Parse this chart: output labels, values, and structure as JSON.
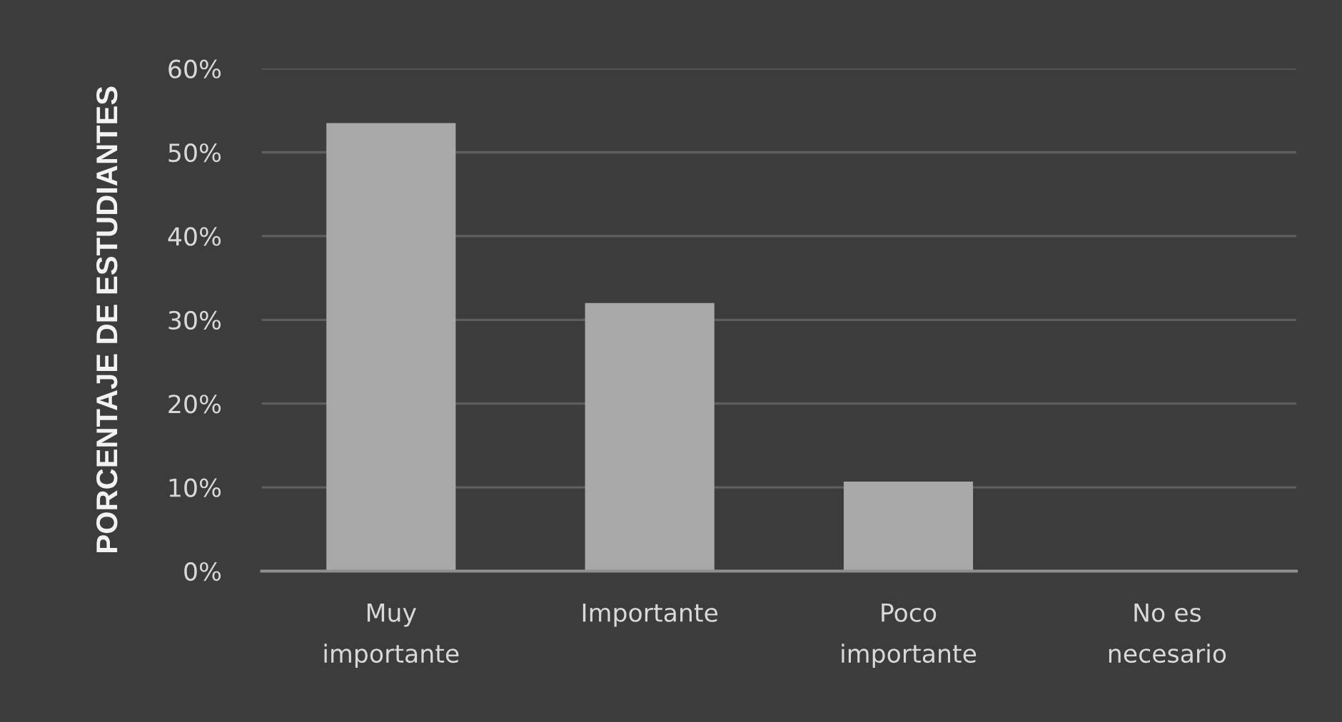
{
  "chart_data": {
    "type": "bar",
    "ylabel": "PORCENTAJE DE ESTUDIANTES",
    "categories": [
      "Muy importante",
      "Importante",
      "Poco importante",
      "No es necesario"
    ],
    "values": [
      53.5,
      32,
      10.7,
      0
    ],
    "color": "#a8a8a8",
    "ylim": [
      0,
      60
    ],
    "yticks": [
      {
        "value": 0,
        "label": "0%"
      },
      {
        "value": 10,
        "label": "10%"
      },
      {
        "value": 20,
        "label": "20%"
      },
      {
        "value": 30,
        "label": "30%"
      },
      {
        "value": 40,
        "label": "40%"
      },
      {
        "value": 50,
        "label": "50%"
      },
      {
        "value": 60,
        "label": "60%"
      }
    ],
    "grid": "y"
  }
}
